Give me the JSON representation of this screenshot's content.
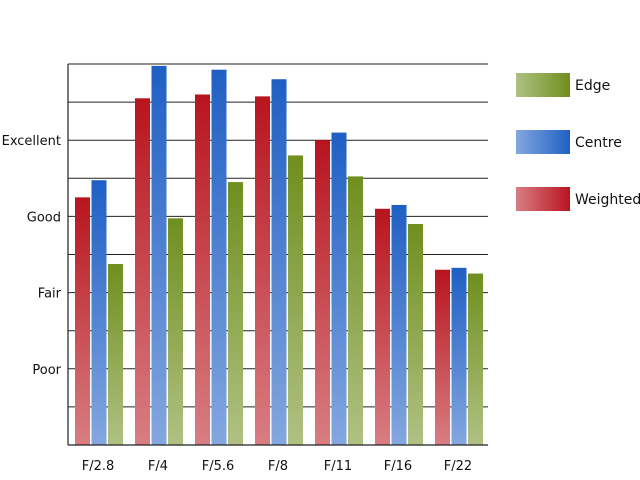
{
  "chart_data": {
    "type": "bar",
    "title": "",
    "xlabel": "",
    "ylabel": "",
    "categories": [
      "F/2.8",
      "F/4",
      "F/5.6",
      "F/8",
      "F/11",
      "F/16",
      "F/22"
    ],
    "y_tick_labels": [
      {
        "label": "Poor",
        "value": 2
      },
      {
        "label": "Fair",
        "value": 4
      },
      {
        "label": "Good",
        "value": 6
      },
      {
        "label": "Excellent",
        "value": 8
      }
    ],
    "ylim": [
      0,
      10
    ],
    "grid": true,
    "legend_position": "right",
    "series": [
      {
        "name": "Weighted",
        "color": "#b8141e",
        "values": [
          6.5,
          9.1,
          9.2,
          9.15,
          8.0,
          6.2,
          4.6
        ]
      },
      {
        "name": "Centre",
        "color": "#1f5fc4",
        "values": [
          6.95,
          9.95,
          9.85,
          9.6,
          8.2,
          6.3,
          4.65
        ]
      },
      {
        "name": "Edge",
        "color": "#6f8f1e",
        "values": [
          4.75,
          5.95,
          6.9,
          7.6,
          7.05,
          5.8,
          4.5
        ]
      }
    ],
    "legend_order": [
      "Edge",
      "Centre",
      "Weighted"
    ]
  }
}
